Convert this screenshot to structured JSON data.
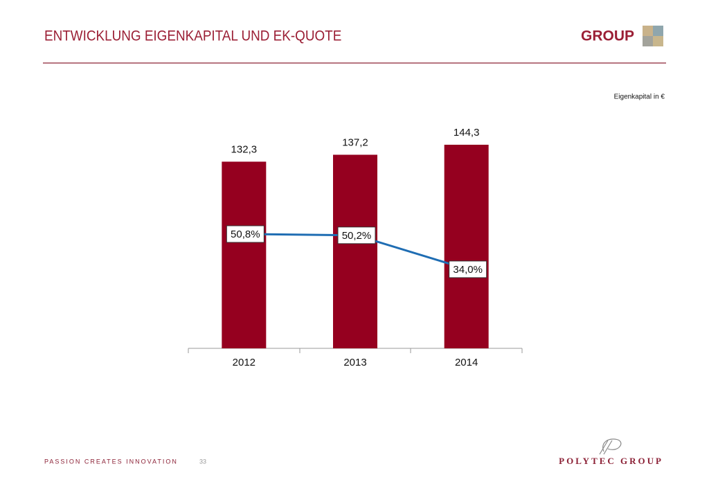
{
  "header": {
    "title": "ENTWICKLUNG EIGENKAPITAL UND EK-QUOTE",
    "brand": "GROUP"
  },
  "chart_data": {
    "type": "bar",
    "unit_label": "Eigenkapital in €",
    "categories": [
      "2012",
      "2013",
      "2014"
    ],
    "series": [
      {
        "type": "bar",
        "color": "#95001f",
        "values": [
          132.3,
          137.2,
          144.3
        ],
        "value_labels": [
          "132,3",
          "137,2",
          "144,3"
        ]
      },
      {
        "type": "line",
        "axis": "y2",
        "color": "#1f6db3",
        "values": [
          50.8,
          50.2,
          34.0
        ],
        "value_labels": [
          "50,8%",
          "50,2%",
          "34,0%"
        ]
      }
    ]
  },
  "footer": {
    "slogan": "PASSION CREATES INNOVATION",
    "page": "33",
    "company": "POLYTEC GROUP"
  }
}
